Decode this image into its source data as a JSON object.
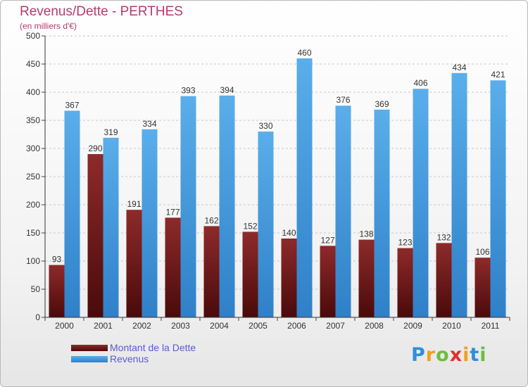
{
  "header": {
    "title": "Revenus/Dette - PERTHES",
    "subtitle": "(en milliers d'€)"
  },
  "colors": {
    "debt_top": "#8e2a2a",
    "debt_bottom": "#4a0a0a",
    "revenue_top": "#5aaeea",
    "revenue_bottom": "#2f80c8",
    "title": "#b43a6e",
    "legend_text": "#5a5ad6"
  },
  "chart_data": {
    "type": "bar",
    "categories": [
      "2000",
      "2001",
      "2002",
      "2003",
      "2004",
      "2005",
      "2006",
      "2007",
      "2008",
      "2009",
      "2010",
      "2011"
    ],
    "series": [
      {
        "name": "Montant de la Dette",
        "values": [
          93,
          290,
          191,
          177,
          162,
          152,
          140,
          127,
          138,
          123,
          132,
          106
        ]
      },
      {
        "name": "Revenus",
        "values": [
          367,
          319,
          334,
          393,
          394,
          330,
          460,
          376,
          369,
          406,
          434,
          421
        ]
      }
    ],
    "title": "Revenus/Dette - PERTHES",
    "subtitle": "(en milliers d'€)",
    "ylim": [
      0,
      500
    ],
    "yticks": [
      0,
      50,
      100,
      150,
      200,
      250,
      300,
      350,
      400,
      450,
      500
    ],
    "grid": true,
    "legend_position": "bottom-left",
    "data_labels": true
  },
  "legend": {
    "items": [
      {
        "label": "Montant de la Dette"
      },
      {
        "label": "Revenus"
      }
    ]
  },
  "logo": {
    "letters": [
      "P",
      "r",
      "o",
      "x",
      "i",
      "t",
      "i"
    ],
    "colors": [
      "#2f8fd8",
      "#f0a020",
      "#6cbf3a",
      "#e0302f",
      "#f0a020",
      "#2f8fd8",
      "#6cbf3a"
    ]
  }
}
